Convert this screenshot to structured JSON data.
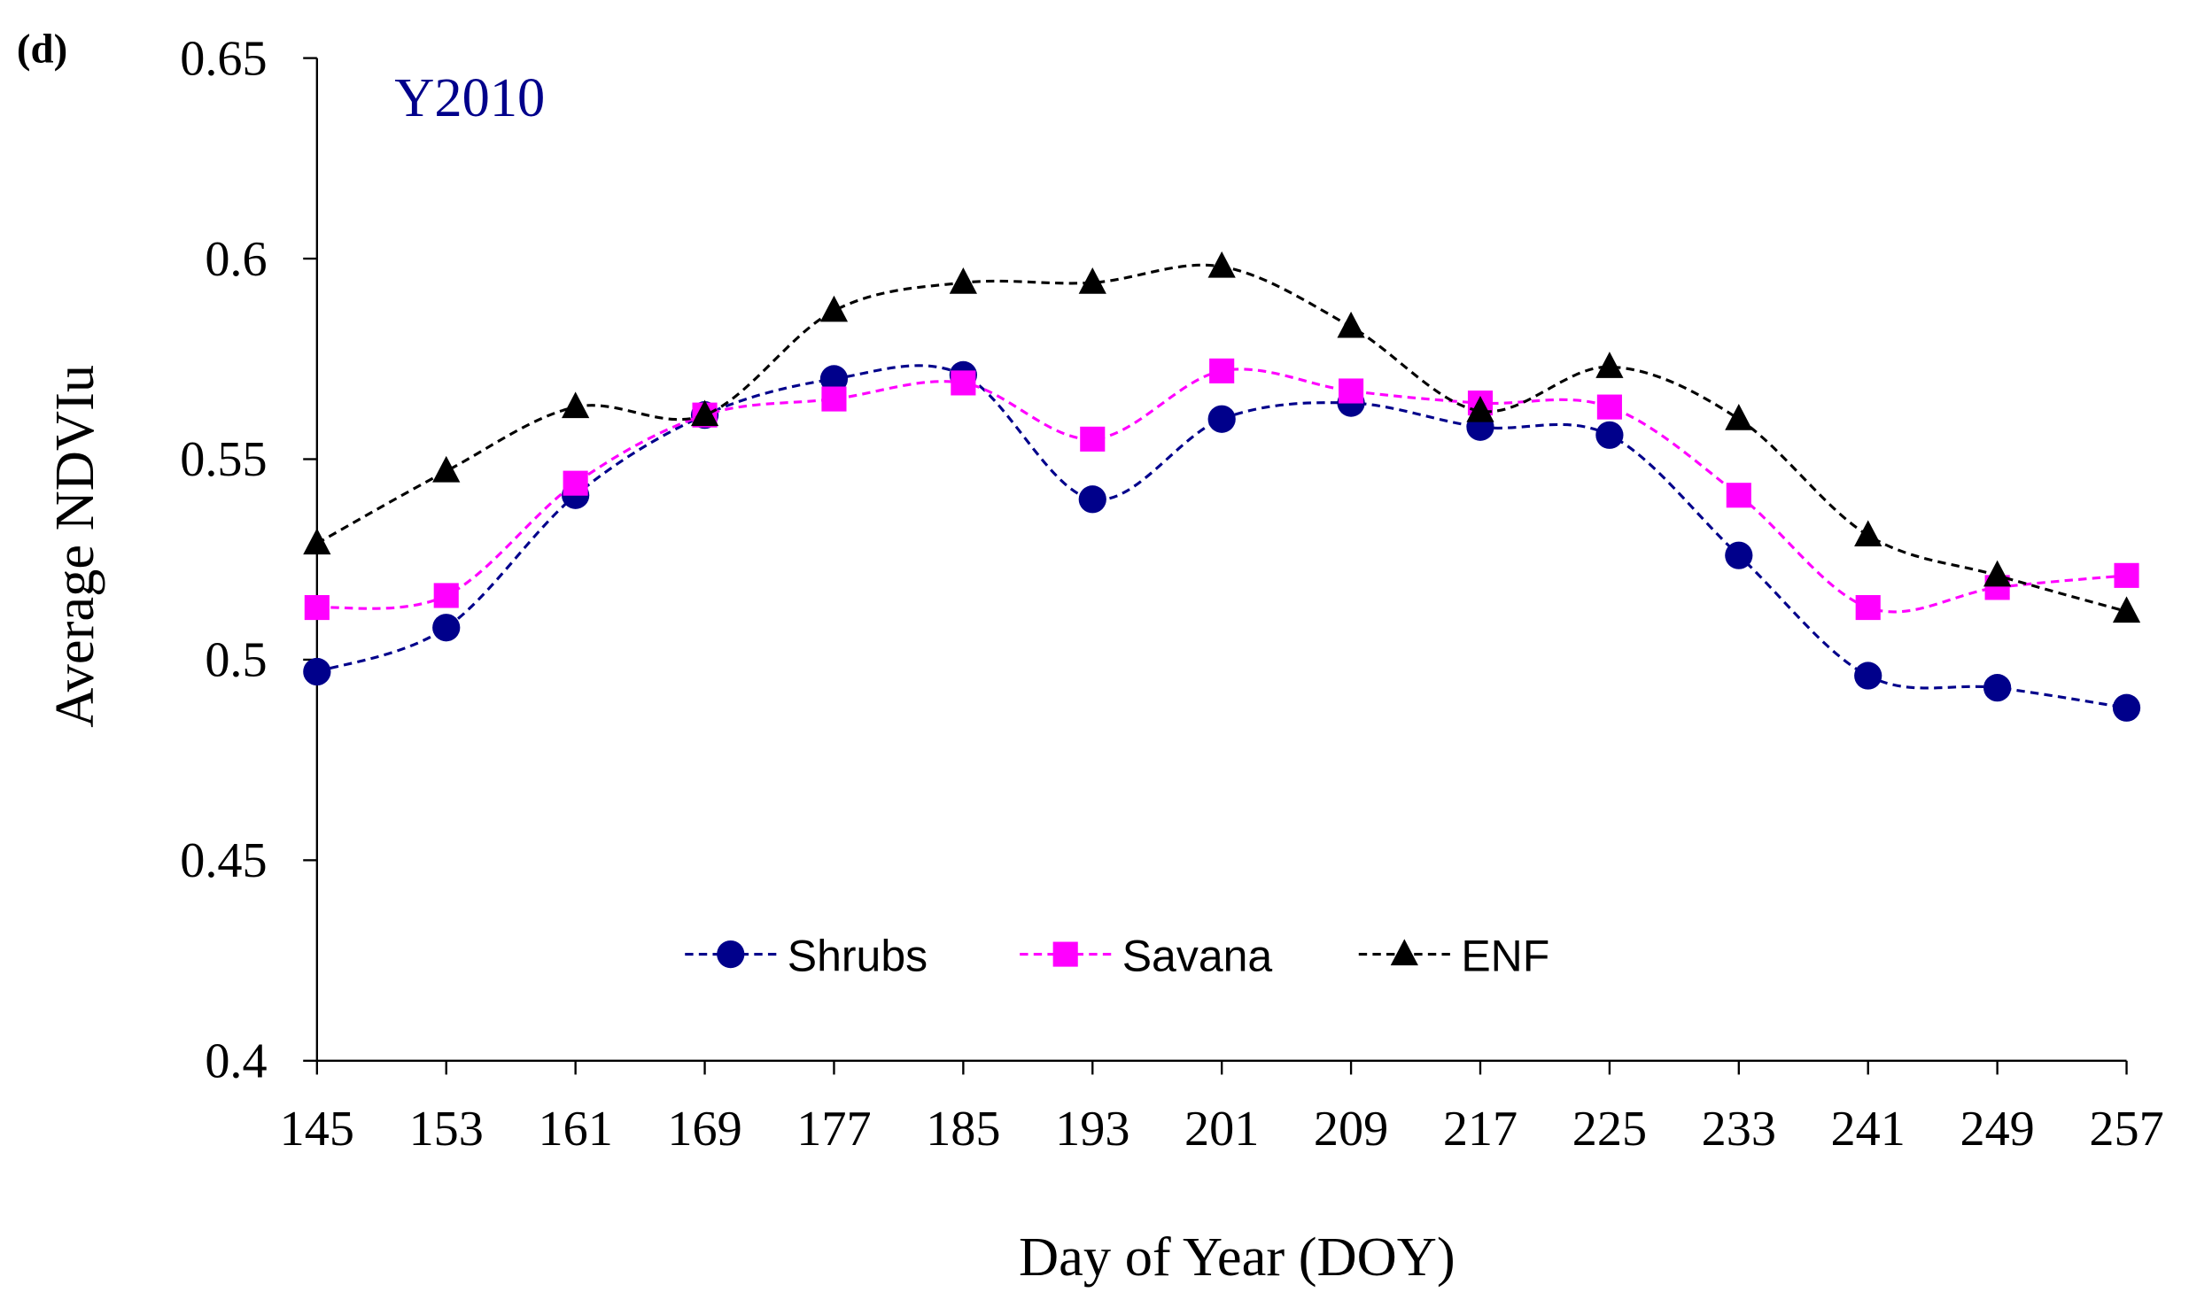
{
  "chart_data": {
    "type": "line",
    "panel_label": "(d)",
    "title": "Y2010",
    "xlabel": "Day of Year (DOY)",
    "ylabel": "Average NDVIu",
    "x": [
      145,
      153,
      161,
      169,
      177,
      185,
      193,
      201,
      209,
      217,
      225,
      233,
      241,
      249,
      257
    ],
    "ylim": [
      0.4,
      0.65
    ],
    "yticks": [
      "0.4",
      "0.45",
      "0.5",
      "0.55",
      "0.6",
      "0.65"
    ],
    "grid": false,
    "legend_position": "bottom-center",
    "series": [
      {
        "name": "Shrubs",
        "color": "#00008B",
        "marker": "circle",
        "values": [
          0.497,
          0.508,
          0.541,
          0.561,
          0.57,
          0.571,
          0.54,
          0.56,
          0.564,
          0.558,
          0.556,
          0.526,
          0.496,
          0.493,
          0.488
        ]
      },
      {
        "name": "Savana",
        "color": "#FF00FF",
        "marker": "square",
        "values": [
          0.513,
          0.516,
          0.544,
          0.561,
          0.565,
          0.569,
          0.555,
          0.572,
          0.567,
          0.564,
          0.563,
          0.541,
          0.513,
          0.518,
          0.521
        ]
      },
      {
        "name": "ENF",
        "color": "#000000",
        "marker": "triangle",
        "values": [
          0.529,
          0.547,
          0.563,
          0.561,
          0.587,
          0.594,
          0.594,
          0.598,
          0.583,
          0.562,
          0.573,
          0.56,
          0.531,
          0.521,
          0.512
        ]
      }
    ]
  }
}
